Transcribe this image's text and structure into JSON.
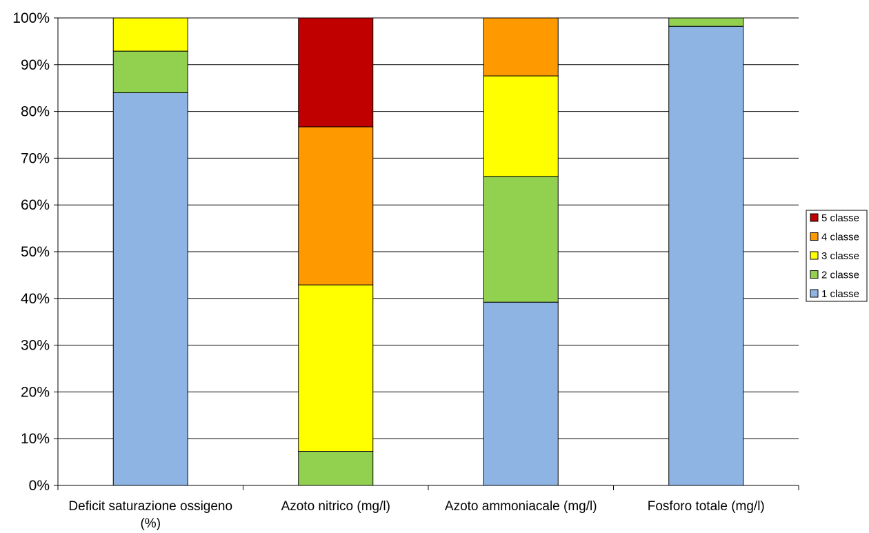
{
  "chart_data": {
    "type": "bar",
    "stacked": true,
    "categories": [
      [
        "Deficit saturazione ossigeno",
        "(%)"
      ],
      [
        "Azoto nitrico (mg/l)"
      ],
      [
        "Azoto ammoniacale (mg/l)"
      ],
      [
        "Fosforo totale (mg/l)"
      ]
    ],
    "series": [
      {
        "name": "1 classe",
        "color": "#8EB4E3",
        "values": [
          84.0,
          0.0,
          39.2,
          98.2
        ]
      },
      {
        "name": "2 classe",
        "color": "#92D050",
        "values": [
          8.9,
          7.3,
          26.9,
          1.8
        ]
      },
      {
        "name": "3 classe",
        "color": "#FFFF00",
        "values": [
          7.1,
          35.6,
          21.5,
          0.0
        ]
      },
      {
        "name": "4 classe",
        "color": "#FF9900",
        "values": [
          0.0,
          33.8,
          12.4,
          0.0
        ]
      },
      {
        "name": "5 classe",
        "color": "#C00000",
        "values": [
          0.0,
          23.3,
          0.0,
          0.0
        ]
      }
    ],
    "yticks": [
      "0%",
      "10%",
      "20%",
      "30%",
      "40%",
      "50%",
      "60%",
      "70%",
      "80%",
      "90%",
      "100%"
    ],
    "ylim": [
      0,
      100
    ],
    "grid": true,
    "legend_position": "right",
    "legend_order": [
      "5 classe",
      "4 classe",
      "3 classe",
      "2 classe",
      "1 classe"
    ],
    "title": "",
    "xlabel": "",
    "ylabel": ""
  }
}
